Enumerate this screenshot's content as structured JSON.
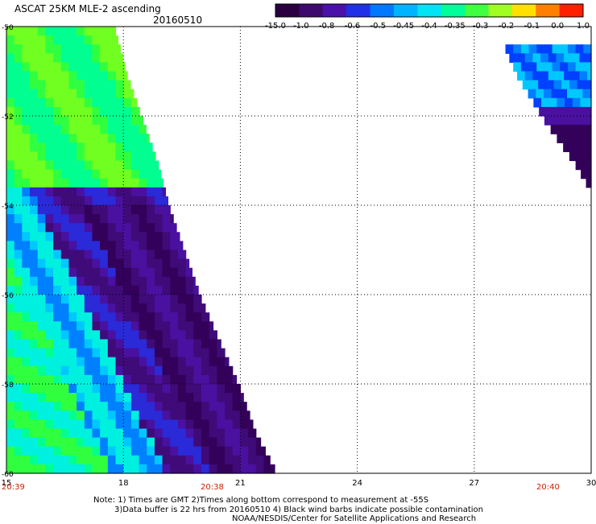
{
  "header": {
    "title": "ASCAT 25KM MLE-2 ascending",
    "date": "20160510"
  },
  "colorbar": {
    "tick_labels": [
      "-15.0",
      "-1.0",
      "-0.8",
      "-0.6",
      "-0.5",
      "-0.45",
      "-0.4",
      "-0.35",
      "-0.3",
      "-0.2",
      "-0.1",
      "0.0",
      "1.0"
    ],
    "colors": [
      "#2a003f",
      "#3e0a6e",
      "#4a12a8",
      "#2030e8",
      "#0078ff",
      "#00b4ff",
      "#00e4f4",
      "#00ff9a",
      "#40ff40",
      "#a0ff20",
      "#ffe000",
      "#ff8000",
      "#ff2000"
    ]
  },
  "chart_data": {
    "type": "heatmap",
    "title": "ASCAT 25KM MLE-2 ascending",
    "date": "20160510",
    "x_ticks": [
      "15",
      "18",
      "21",
      "24",
      "27",
      "30"
    ],
    "y_ticks": [
      "-50",
      "-52",
      "-54",
      "-56",
      "-58",
      "-60"
    ],
    "xlim": [
      15,
      30
    ],
    "ylim": [
      -60,
      -50
    ],
    "grid": true,
    "swaths": [
      {
        "name": "west",
        "longitude_edge": [
          [
            -50.0,
            17.8
          ],
          [
            -51.0,
            18.1
          ],
          [
            -52.0,
            18.5
          ],
          [
            -53.0,
            18.9
          ],
          [
            -54.0,
            19.2
          ],
          [
            -55.0,
            19.6
          ],
          [
            -56.0,
            20.0
          ],
          [
            -57.0,
            20.5
          ],
          [
            -58.0,
            21.0
          ],
          [
            -59.0,
            21.4
          ],
          [
            -60.0,
            22.0
          ]
        ]
      },
      {
        "name": "east",
        "longitude_edge": [
          [
            -50.4,
            27.8
          ],
          [
            -51.0,
            28.1
          ],
          [
            -52.0,
            28.8
          ],
          [
            -53.0,
            29.6
          ],
          [
            -53.6,
            30.0
          ]
        ]
      }
    ]
  },
  "time_labels": [
    {
      "text": "20:39",
      "lon": 15
    },
    {
      "text": "20:38",
      "lon": 20.2
    },
    {
      "text": "20:40",
      "lon": 29.2
    }
  ],
  "time_color": "#cc2200",
  "notes": [
    "Note: 1) Times are GMT 2)Times along bottom correspond to measurement at -55S",
    "3)Data buffer is 22 hrs from 20160510 4) Black wind barbs indicate possible contamination",
    "NOAA/NESDIS/Center for Satellite Applications and Research"
  ]
}
